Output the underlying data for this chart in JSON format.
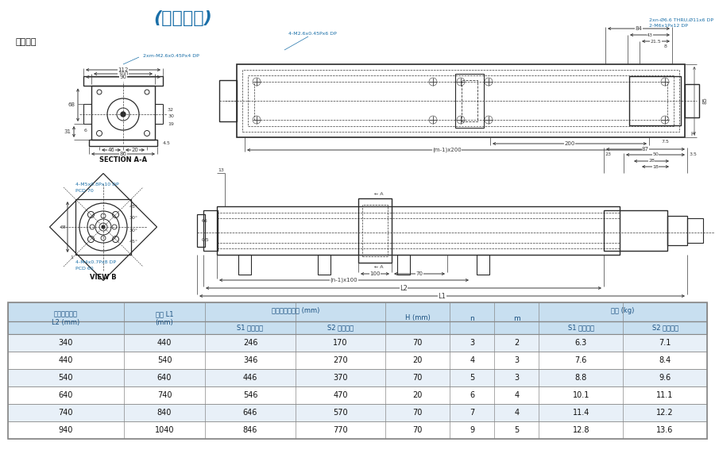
{
  "title": "(軽荷重型)",
  "title_color": "#1a6fa8",
  "bg_color": "#ffffff",
  "line_color": "#2a2a2a",
  "dim_color": "#3a3a3a",
  "blue_color": "#1a6fa8",
  "table_header_bg": "#c8dff0",
  "table_row_bg_alt": "#e8f0f8",
  "table_row_bg": "#ffffff",
  "table_border_color": "#888888",
  "table_text_color": "#111111",
  "header_text_color": "#1a5080",
  "data_rows": [
    [
      "340",
      "440",
      "246",
      "170",
      "70",
      "3",
      "2",
      "6.3",
      "7.1"
    ],
    [
      "440",
      "540",
      "346",
      "270",
      "20",
      "4",
      "3",
      "7.6",
      "8.4"
    ],
    [
      "540",
      "640",
      "446",
      "370",
      "70",
      "5",
      "3",
      "8.8",
      "9.6"
    ],
    [
      "640",
      "740",
      "546",
      "470",
      "20",
      "6",
      "4",
      "10.1",
      "11.1"
    ],
    [
      "740",
      "840",
      "646",
      "570",
      "70",
      "7",
      "4",
      "11.4",
      "12.2"
    ],
    [
      "940",
      "1040",
      "846",
      "770",
      "70",
      "9",
      "5",
      "12.8",
      "13.6"
    ]
  ],
  "col_widths": [
    1.35,
    0.95,
    1.05,
    1.05,
    0.75,
    0.52,
    0.52,
    0.98,
    0.98
  ]
}
